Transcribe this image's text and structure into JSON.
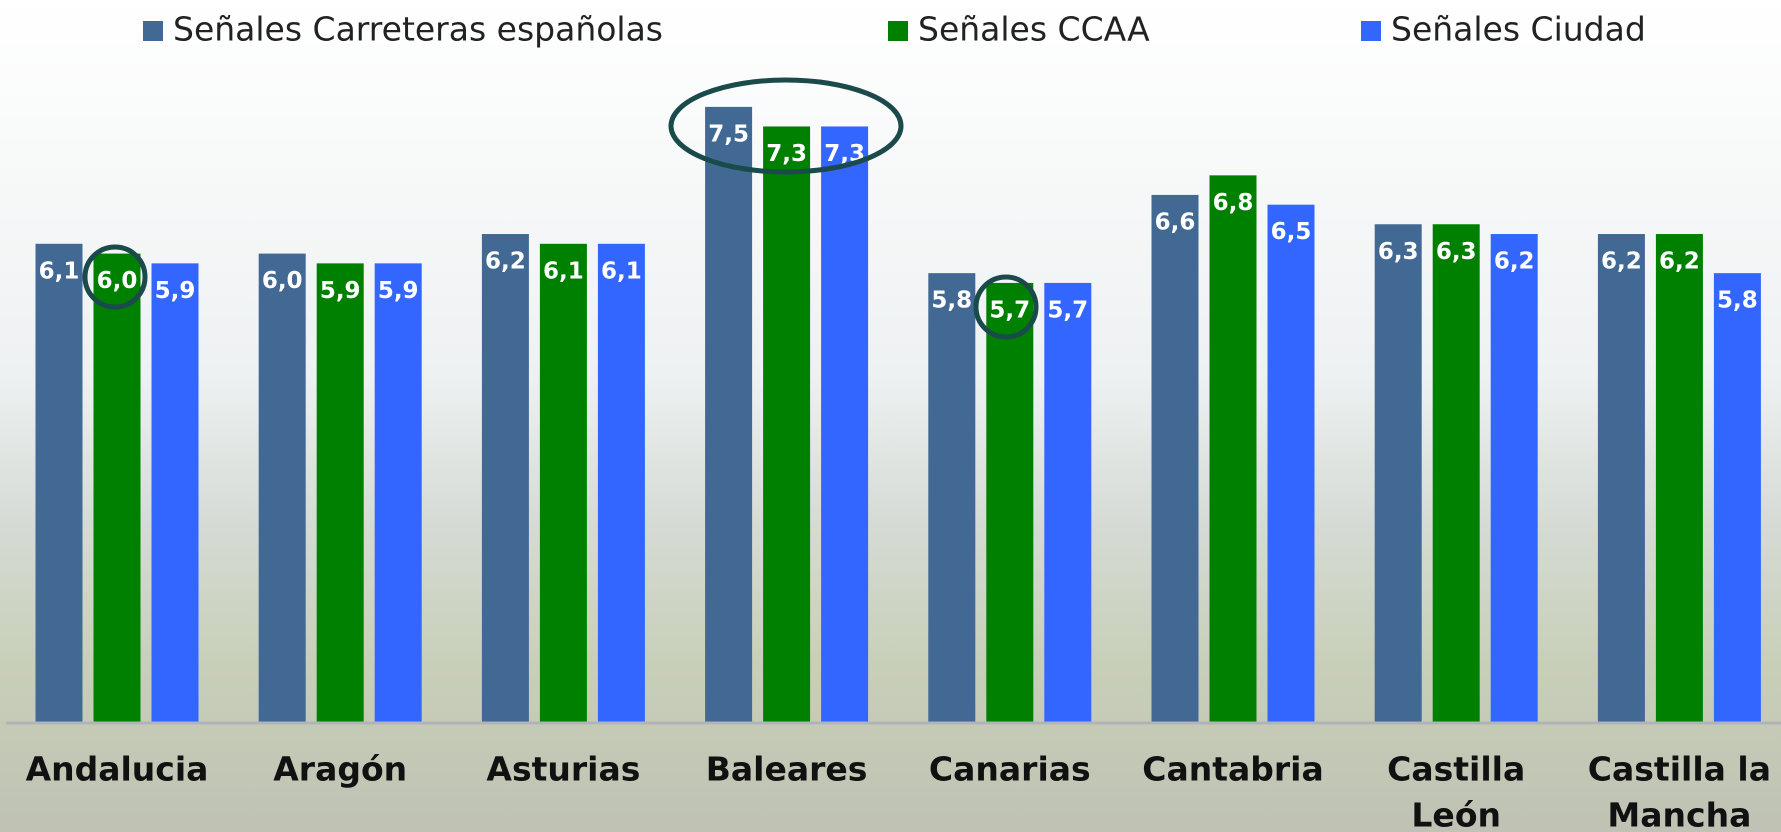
{
  "chart_data": {
    "type": "bar",
    "categories": [
      [
        "Andalucia"
      ],
      [
        "Aragón"
      ],
      [
        "Asturias"
      ],
      [
        "Baleares"
      ],
      [
        "Canarias"
      ],
      [
        "Cantabria"
      ],
      [
        "Castilla",
        "León"
      ],
      [
        "Castilla la",
        "Mancha"
      ]
    ],
    "series": [
      {
        "name": "Señales Carreteras españolas",
        "color": "#426894",
        "values": [
          6.1,
          6.0,
          6.2,
          7.5,
          5.8,
          6.6,
          6.3,
          6.2
        ],
        "value_labels": [
          "6,1",
          "6,0",
          "6,2",
          "7,5",
          "5,8",
          "6,6",
          "6,3",
          "6,2"
        ]
      },
      {
        "name": "Señales CCAA",
        "color": "#008000",
        "values": [
          6.0,
          5.9,
          6.1,
          7.3,
          5.7,
          6.8,
          6.3,
          6.2
        ],
        "value_labels": [
          "6,0",
          "5,9",
          "6,1",
          "7,3",
          "5,7",
          "6,8",
          "6,3",
          "6,2"
        ]
      },
      {
        "name": "Señales Ciudad",
        "color": "#3366ff",
        "values": [
          5.9,
          5.9,
          6.1,
          7.3,
          5.7,
          6.5,
          6.2,
          5.8
        ],
        "value_labels": [
          "5,9",
          "5,9",
          "6,1",
          "7,3",
          "5,7",
          "6,5",
          "6,2",
          "5,8"
        ]
      }
    ],
    "ylim": [
      1.2,
      8.0
    ],
    "legend": "top"
  }
}
